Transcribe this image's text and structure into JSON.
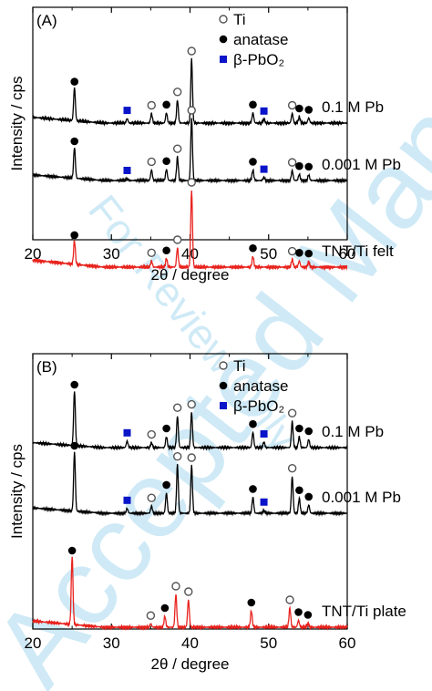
{
  "watermark": {
    "line1": "Accepted Manuscript",
    "line2": "For Review Only"
  },
  "chart_data": [
    {
      "type": "line",
      "panel_label": "(A)",
      "xlabel": "2θ / degree",
      "ylabel": "Intensity / cps",
      "xlim": [
        20,
        60
      ],
      "xticks": [
        20,
        30,
        40,
        50,
        60
      ],
      "legend": {
        "placement": "top-right",
        "items": [
          {
            "marker": "open-circle",
            "label": "Ti"
          },
          {
            "marker": "filled-circle",
            "label": "anatase"
          },
          {
            "marker": "blue-square",
            "label": "β-PbO₂"
          }
        ]
      },
      "series": [
        {
          "name": "0.1 M Pb",
          "color": "#000000",
          "peaks": [
            {
              "x": 25.3,
              "h": 0.52,
              "marker": "filled-circle"
            },
            {
              "x": 32.0,
              "h": 0.07,
              "marker": "blue-square"
            },
            {
              "x": 35.1,
              "h": 0.15,
              "marker": "open-circle"
            },
            {
              "x": 37.0,
              "h": 0.16,
              "marker": "filled-circle"
            },
            {
              "x": 38.4,
              "h": 0.36,
              "marker": "open-circle"
            },
            {
              "x": 40.2,
              "h": 1.0,
              "marker": "open-circle"
            },
            {
              "x": 48.0,
              "h": 0.16,
              "marker": "filled-circle"
            },
            {
              "x": 49.4,
              "h": 0.06,
              "marker": "blue-square"
            },
            {
              "x": 53.0,
              "h": 0.15,
              "marker": "open-circle"
            },
            {
              "x": 53.9,
              "h": 0.1,
              "marker": "filled-circle"
            },
            {
              "x": 55.1,
              "h": 0.08,
              "marker": "filled-circle"
            }
          ]
        },
        {
          "name": "0.001 M Pb",
          "color": "#000000",
          "peaks": [
            {
              "x": 25.3,
              "h": 0.5,
              "marker": "filled-circle"
            },
            {
              "x": 32.0,
              "h": 0.03,
              "marker": "blue-square"
            },
            {
              "x": 35.1,
              "h": 0.17,
              "marker": "open-circle"
            },
            {
              "x": 37.0,
              "h": 0.18,
              "marker": "filled-circle"
            },
            {
              "x": 38.4,
              "h": 0.38,
              "marker": "open-circle"
            },
            {
              "x": 40.2,
              "h": 1.0,
              "marker": "open-circle"
            },
            {
              "x": 48.0,
              "h": 0.17,
              "marker": "filled-circle"
            },
            {
              "x": 49.4,
              "h": 0.05,
              "marker": "blue-square"
            },
            {
              "x": 53.0,
              "h": 0.16,
              "marker": "open-circle"
            },
            {
              "x": 53.9,
              "h": 0.1,
              "marker": "filled-circle"
            },
            {
              "x": 55.1,
              "h": 0.09,
              "marker": "filled-circle"
            }
          ]
        },
        {
          "name": "TNT/Ti felt",
          "color": "#e8231e",
          "peaks": [
            {
              "x": 25.3,
              "h": 0.31,
              "marker": "filled-circle"
            },
            {
              "x": 35.1,
              "h": 0.08,
              "marker": "open-circle"
            },
            {
              "x": 37.0,
              "h": 0.11,
              "marker": "filled-circle"
            },
            {
              "x": 38.4,
              "h": 0.25,
              "marker": "open-circle"
            },
            {
              "x": 40.2,
              "h": 1.0,
              "marker": "open-circle"
            },
            {
              "x": 48.0,
              "h": 0.14,
              "marker": "filled-circle"
            },
            {
              "x": 53.0,
              "h": 0.1,
              "marker": "open-circle"
            },
            {
              "x": 53.9,
              "h": 0.08,
              "marker": "filled-circle"
            },
            {
              "x": 55.1,
              "h": 0.07,
              "marker": "filled-circle"
            }
          ]
        }
      ]
    },
    {
      "type": "line",
      "panel_label": "(B)",
      "xlabel": "2θ / degree",
      "ylabel": "Intensity / cps",
      "xlim": [
        20,
        60
      ],
      "xticks": [
        20,
        30,
        40,
        50,
        60
      ],
      "legend": {
        "placement": "top-right",
        "items": [
          {
            "marker": "open-circle",
            "label": "Ti"
          },
          {
            "marker": "filled-circle",
            "label": "anatase"
          },
          {
            "marker": "blue-square",
            "label": "β-PbO₂"
          }
        ]
      },
      "series": [
        {
          "name": "0.1 M Pb",
          "color": "#000000",
          "peaks": [
            {
              "x": 25.3,
              "h": 1.0,
              "marker": "filled-circle"
            },
            {
              "x": 32.0,
              "h": 0.12,
              "marker": "blue-square"
            },
            {
              "x": 35.1,
              "h": 0.09,
              "marker": "open-circle"
            },
            {
              "x": 37.0,
              "h": 0.2,
              "marker": "filled-circle"
            },
            {
              "x": 38.4,
              "h": 0.58,
              "marker": "open-circle"
            },
            {
              "x": 40.2,
              "h": 0.64,
              "marker": "open-circle"
            },
            {
              "x": 48.0,
              "h": 0.28,
              "marker": "filled-circle"
            },
            {
              "x": 49.4,
              "h": 0.1,
              "marker": "blue-square"
            },
            {
              "x": 53.0,
              "h": 0.48,
              "marker": "open-circle"
            },
            {
              "x": 53.9,
              "h": 0.2,
              "marker": "filled-circle"
            },
            {
              "x": 55.1,
              "h": 0.15,
              "marker": "filled-circle"
            }
          ]
        },
        {
          "name": "0.001 M Pb",
          "color": "#000000",
          "peaks": [
            {
              "x": 25.3,
              "h": 1.0,
              "marker": "filled-circle"
            },
            {
              "x": 32.0,
              "h": 0.08,
              "marker": "blue-square"
            },
            {
              "x": 35.1,
              "h": 0.12,
              "marker": "open-circle"
            },
            {
              "x": 37.0,
              "h": 0.34,
              "marker": "filled-circle"
            },
            {
              "x": 38.4,
              "h": 0.82,
              "marker": "open-circle"
            },
            {
              "x": 40.2,
              "h": 0.8,
              "marker": "open-circle"
            },
            {
              "x": 48.0,
              "h": 0.27,
              "marker": "filled-circle"
            },
            {
              "x": 49.4,
              "h": 0.05,
              "marker": "blue-square"
            },
            {
              "x": 53.0,
              "h": 0.62,
              "marker": "open-circle"
            },
            {
              "x": 53.9,
              "h": 0.25,
              "marker": "filled-circle"
            },
            {
              "x": 55.1,
              "h": 0.14,
              "marker": "filled-circle"
            }
          ]
        },
        {
          "name": "TNT/Ti plate",
          "color": "#e8231e",
          "peaks": [
            {
              "x": 25.0,
              "h": 1.0,
              "marker": "filled-circle"
            },
            {
              "x": 35.0,
              "h": 0.05,
              "marker": "open-circle"
            },
            {
              "x": 36.8,
              "h": 0.16,
              "marker": "filled-circle"
            },
            {
              "x": 38.2,
              "h": 0.48,
              "marker": "open-circle"
            },
            {
              "x": 39.8,
              "h": 0.4,
              "marker": "open-circle"
            },
            {
              "x": 47.8,
              "h": 0.24,
              "marker": "filled-circle"
            },
            {
              "x": 52.7,
              "h": 0.28,
              "marker": "open-circle"
            },
            {
              "x": 53.8,
              "h": 0.1,
              "marker": "filled-circle"
            },
            {
              "x": 55.0,
              "h": 0.06,
              "marker": "filled-circle"
            }
          ]
        }
      ]
    }
  ]
}
